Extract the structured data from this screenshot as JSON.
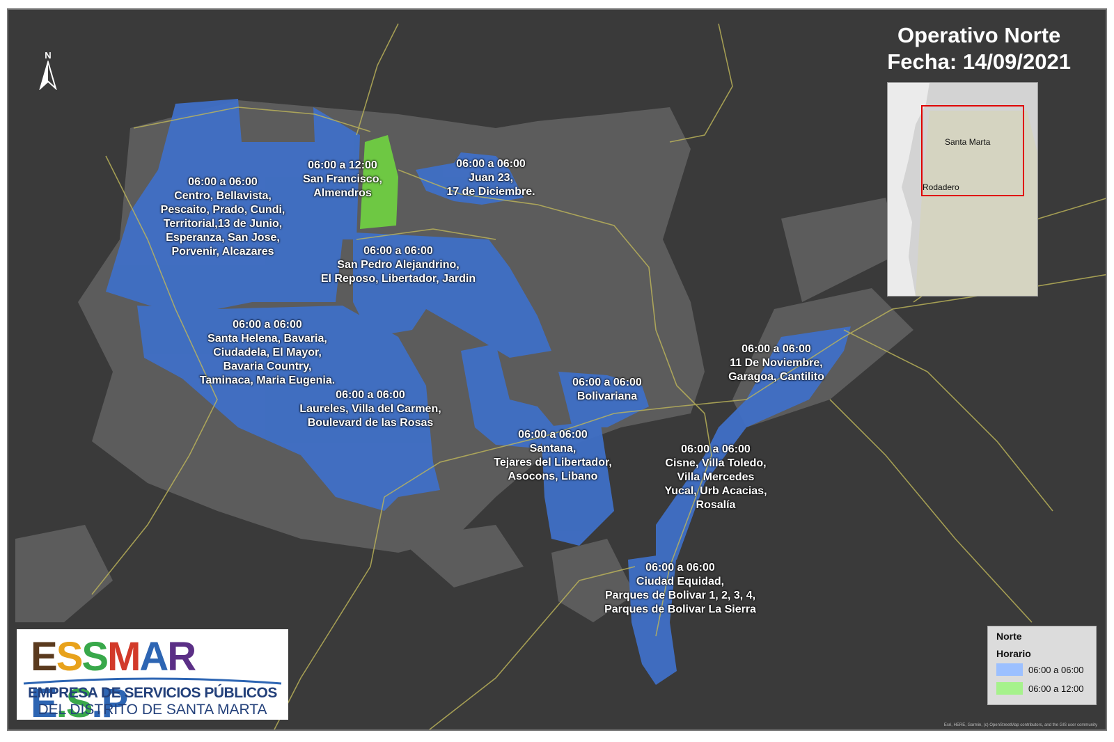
{
  "title": {
    "line1": "Operativo Norte",
    "line2": "Fecha: 14/09/2021"
  },
  "north_arrow": {
    "letter": "N"
  },
  "colors": {
    "background": "#3a3a3a",
    "blocks": "#606060",
    "roads": "#bfb75a",
    "zone_06_06": "#3f6fc6",
    "zone_06_12": "#6ec843",
    "inset_frame": "#e00000"
  },
  "zones": [
    {
      "lines": [
        "06:00 a 06:00",
        "Centro, Bellavista,",
        "Pescaito, Prado, Cundi,",
        "Territorial,13 de Junio,",
        "Esperanza, San Jose,",
        "Porvenir, Alcazares"
      ]
    },
    {
      "lines": [
        "06:00 a 12:00",
        "San Francisco,",
        "Almendros"
      ]
    },
    {
      "lines": [
        "06:00 a 06:00",
        "Juan 23,",
        "17 de Diciembre."
      ]
    },
    {
      "lines": [
        "06:00 a 06:00",
        "San Pedro Alejandrino,",
        "El Reposo, Libertador, Jardin"
      ]
    },
    {
      "lines": [
        "06:00 a 06:00",
        "Santa Helena, Bavaria,",
        "Ciudadela, El Mayor,",
        "Bavaria Country,",
        "Taminaca, Maria Eugenia."
      ]
    },
    {
      "lines": [
        "06:00 a 06:00",
        "Laureles, Villa del Carmen,",
        "Boulevard de las Rosas"
      ]
    },
    {
      "lines": [
        "06:00 a 06:00",
        "Bolivariana"
      ]
    },
    {
      "lines": [
        "06:00 a 06:00",
        "11 De Noviembre,",
        "Garagoa, Cantilito"
      ]
    },
    {
      "lines": [
        "06:00 a 06:00",
        "Santana,",
        "Tejares del Libertador,",
        "Asocons, Libano"
      ]
    },
    {
      "lines": [
        "06:00 a 06:00",
        "Cisne, Villa Toledo,",
        "Villa Mercedes",
        "Yucal, Urb Acacias,",
        "Rosalía"
      ]
    },
    {
      "lines": [
        "06:00 a 06:00",
        "Ciudad Equidad,",
        "Parques de Bolivar 1, 2, 3, 4,",
        "Parques de Bolivar La Sierra"
      ]
    }
  ],
  "inset": {
    "label_city": "Santa Marta",
    "label_area": "Rodadero"
  },
  "legend": {
    "title": "Norte",
    "subtitle": "Horario",
    "items": [
      {
        "label": "06:00 a 06:00",
        "color": "#9cc0ff"
      },
      {
        "label": "06:00 a 12:00",
        "color": "#a6f28c"
      }
    ]
  },
  "logo": {
    "brand": "ESSMAR E.S.P",
    "line1": "EMPRESA DE SERVICIOS PÚBLICOS",
    "line2": "DEL DISTRITO DE SANTA MARTA"
  },
  "attribution": "Esri, HERE, Garmin, (c) OpenStreetMap contributors, and the GIS user community"
}
